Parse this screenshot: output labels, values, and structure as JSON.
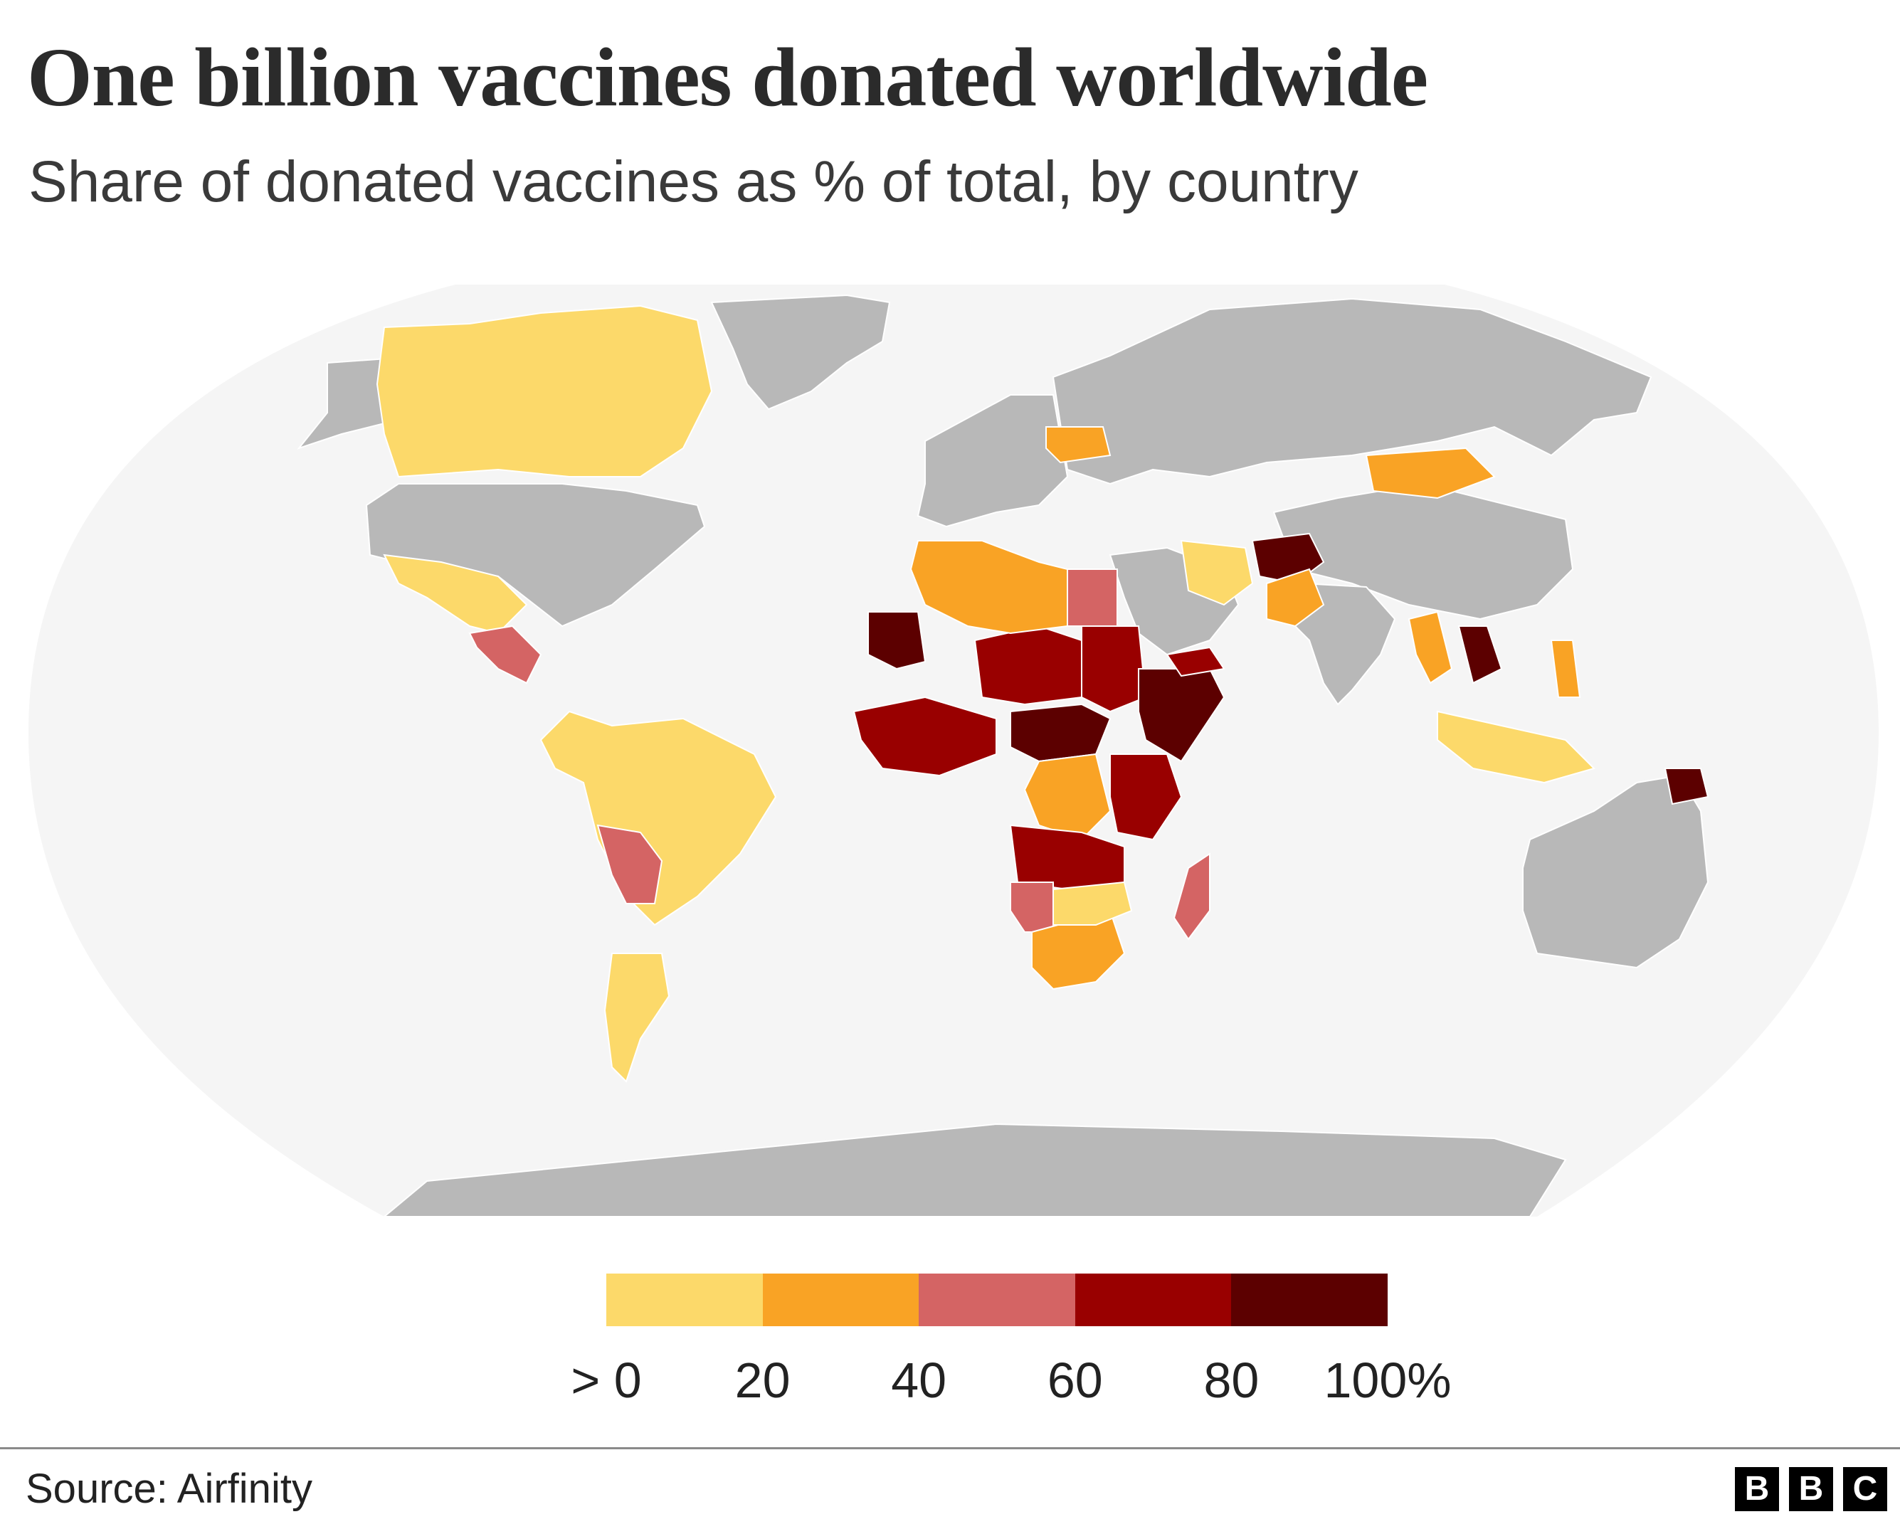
{
  "title": "One billion vaccines donated worldwide",
  "subtitle": "Share of donated vaccines as % of total, by country",
  "colors": {
    "ocean": "#f5f5f5",
    "no_data": "#b8b8b8",
    "border": "#ffffff",
    "bin_0_20": "#fcd96a",
    "bin_20_40": "#f9a325",
    "bin_40_60": "#d46464",
    "bin_60_80": "#990000",
    "bin_80_100": "#5c0000"
  },
  "legend": {
    "swatches": [
      "#fcd96a",
      "#f9a325",
      "#d46464",
      "#990000",
      "#5c0000"
    ],
    "labels": [
      "> 0",
      "20",
      "40",
      "60",
      "80",
      "100%"
    ]
  },
  "regions": [
    {
      "name": "Canada",
      "bin": 1
    },
    {
      "name": "Mexico",
      "bin": 1
    },
    {
      "name": "Central America",
      "bin": 3
    },
    {
      "name": "Brazil",
      "bin": 1
    },
    {
      "name": "Argentina",
      "bin": 1
    },
    {
      "name": "Bolivia and Paraguay",
      "bin": 3
    },
    {
      "name": "West Africa",
      "bin": 4
    },
    {
      "name": "Mauritania",
      "bin": 5
    },
    {
      "name": "Niger and Chad",
      "bin": 4
    },
    {
      "name": "Algeria and Libya",
      "bin": 2
    },
    {
      "name": "Egypt",
      "bin": 3
    },
    {
      "name": "Sudan",
      "bin": 4
    },
    {
      "name": "Ethiopia and Somalia",
      "bin": 5
    },
    {
      "name": "Central Africa",
      "bin": 5
    },
    {
      "name": "DR Congo",
      "bin": 2
    },
    {
      "name": "East Africa",
      "bin": 4
    },
    {
      "name": "Angola and Zambia",
      "bin": 4
    },
    {
      "name": "Namibia",
      "bin": 3
    },
    {
      "name": "South Africa",
      "bin": 2
    },
    {
      "name": "Botswana and Zimbabwe",
      "bin": 1
    },
    {
      "name": "Madagascar",
      "bin": 3
    },
    {
      "name": "Yemen",
      "bin": 4
    },
    {
      "name": "Afghanistan",
      "bin": 5
    },
    {
      "name": "Pakistan",
      "bin": 2
    },
    {
      "name": "Iran",
      "bin": 1
    },
    {
      "name": "Mongolia",
      "bin": 2
    },
    {
      "name": "Myanmar",
      "bin": 2
    },
    {
      "name": "Laos",
      "bin": 5
    },
    {
      "name": "Indonesia",
      "bin": 1
    },
    {
      "name": "Philippines",
      "bin": 2
    },
    {
      "name": "Papua New Guinea",
      "bin": 5
    },
    {
      "name": "Ukraine",
      "bin": 2
    }
  ],
  "source": "Source: Airfinity",
  "logo": [
    "B",
    "B",
    "C"
  ]
}
